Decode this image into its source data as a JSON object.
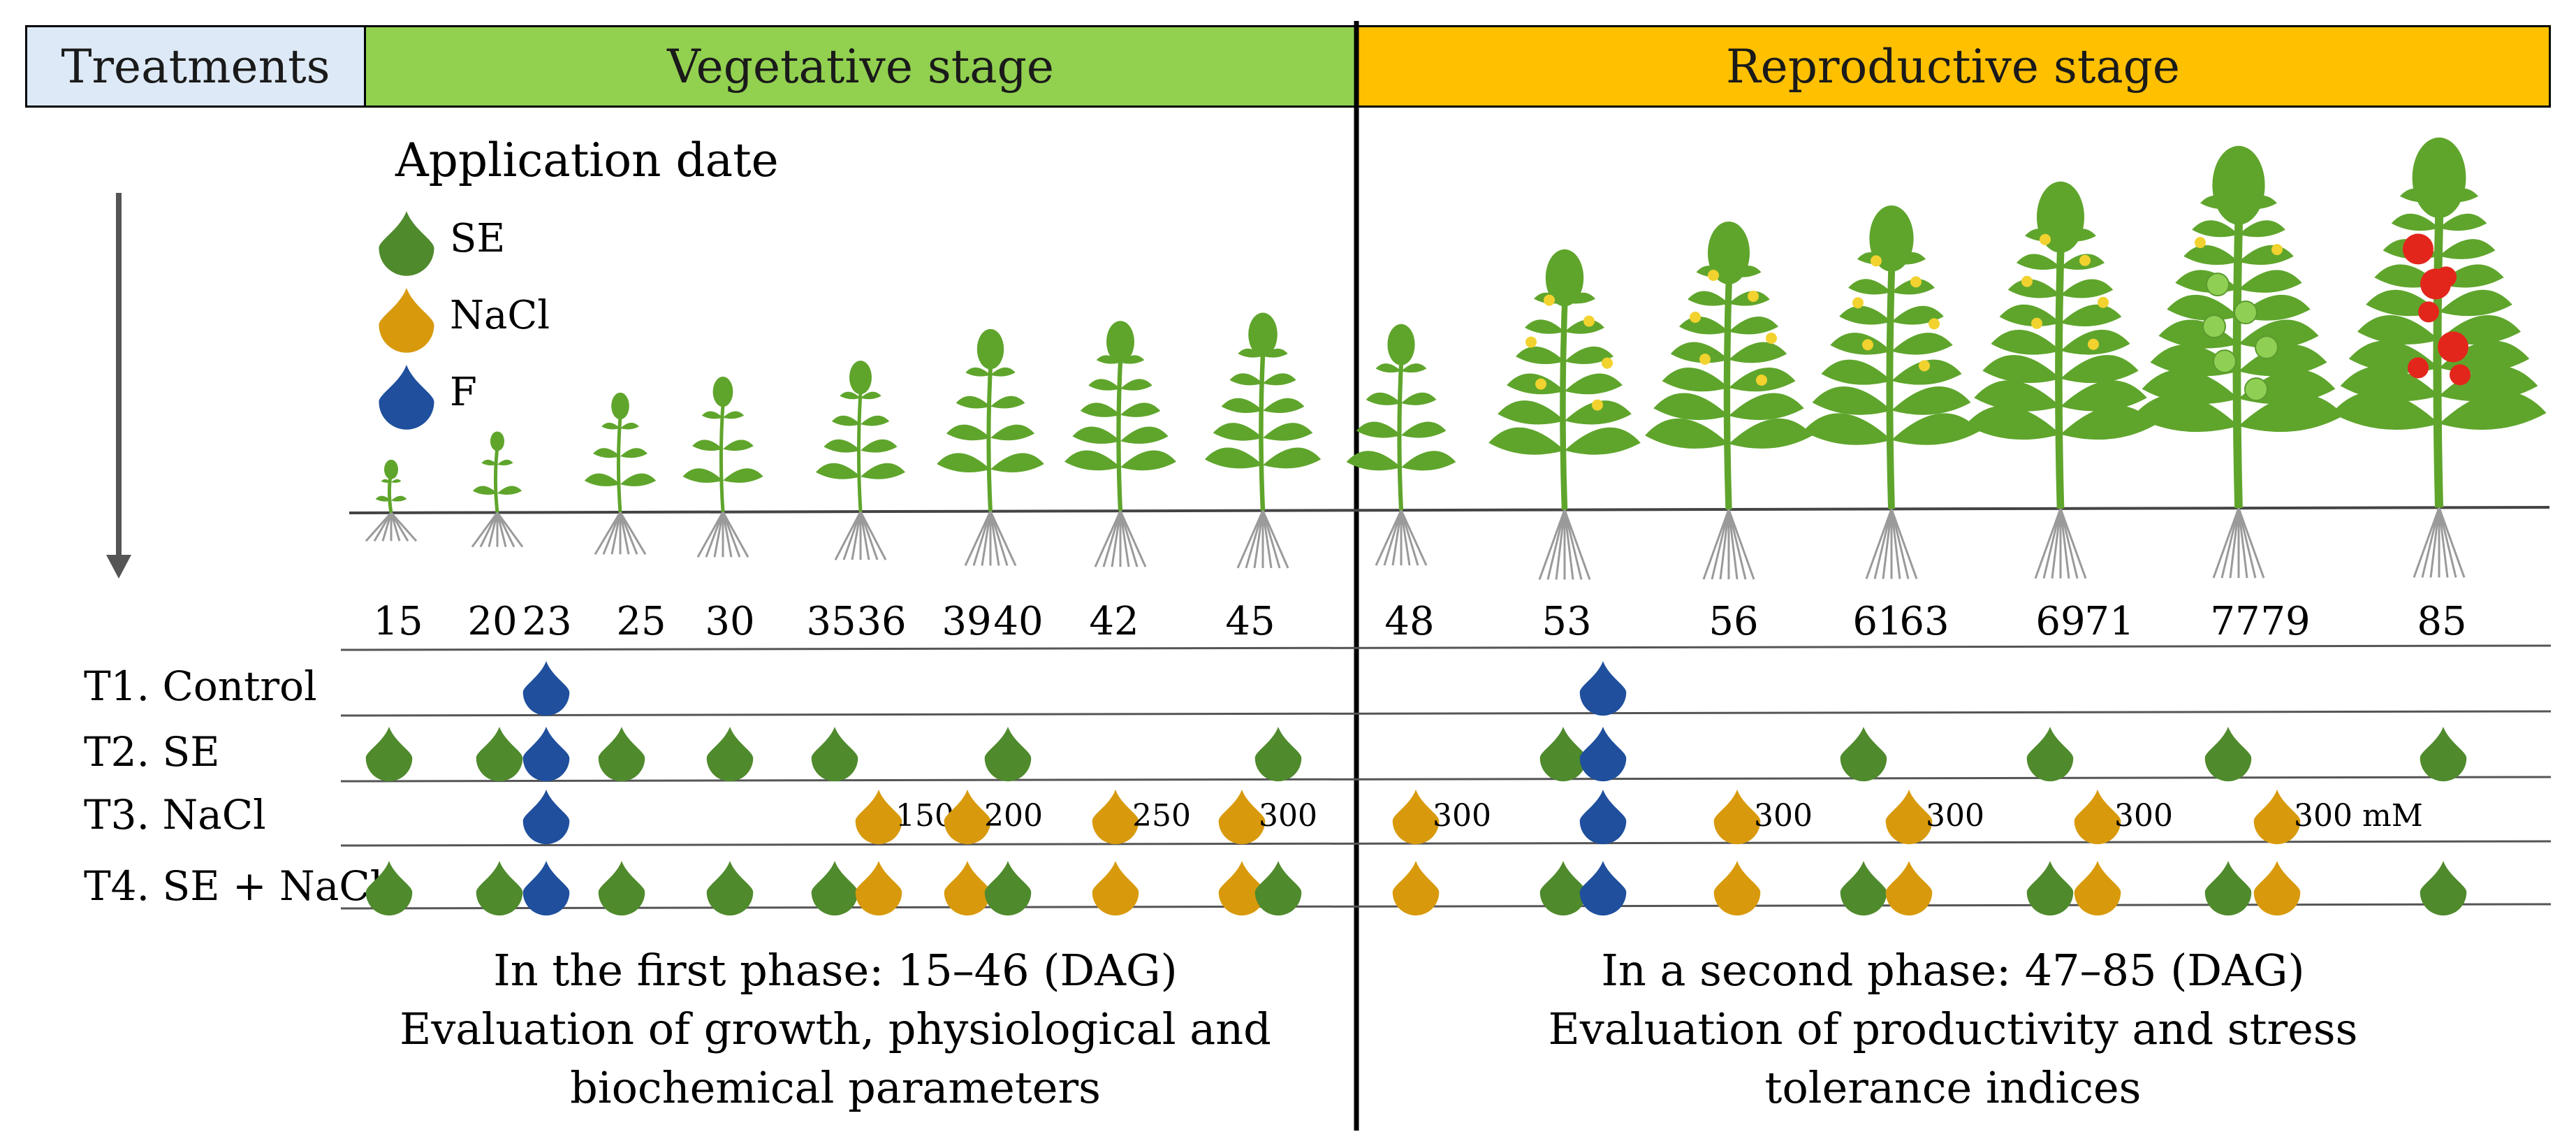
{
  "headers": {
    "treatments": "Treatments",
    "vegetative": "Vegetative stage",
    "reproductive": "Reproductive stage"
  },
  "legend": {
    "title": "Application date",
    "items": [
      {
        "label": "SE",
        "color": "#4f8a2c"
      },
      {
        "label": "NaCl",
        "color": "#d89a0c"
      },
      {
        "label": "F",
        "color": "#1f4f9d"
      }
    ]
  },
  "days": [
    15,
    20,
    23,
    25,
    30,
    35,
    36,
    39,
    40,
    42,
    45,
    48,
    53,
    56,
    61,
    63,
    69,
    71,
    77,
    79,
    85
  ],
  "treatments": [
    {
      "id": "T1",
      "label": "T1. Control",
      "drops": [
        {
          "type": "F",
          "day": 23
        },
        {
          "type": "F",
          "day": 53
        }
      ]
    },
    {
      "id": "T2",
      "label": "T2. SE",
      "drops": [
        {
          "type": "SE",
          "day": 15
        },
        {
          "type": "SE",
          "day": 20
        },
        {
          "type": "F",
          "day": 23
        },
        {
          "type": "SE",
          "day": 25
        },
        {
          "type": "SE",
          "day": 30
        },
        {
          "type": "SE",
          "day": 35
        },
        {
          "type": "SE",
          "day": 40
        },
        {
          "type": "SE",
          "day": 45
        },
        {
          "type": "SE",
          "day": 53
        },
        {
          "type": "F",
          "day": 53
        },
        {
          "type": "SE",
          "day": 61
        },
        {
          "type": "SE",
          "day": 69
        },
        {
          "type": "SE",
          "day": 77
        },
        {
          "type": "SE",
          "day": 85
        }
      ]
    },
    {
      "id": "T3",
      "label": "T3. NaCl",
      "drops": [
        {
          "type": "F",
          "day": 23
        },
        {
          "type": "NaCl",
          "day": 36,
          "note": "150"
        },
        {
          "type": "NaCl",
          "day": 39,
          "note": "200"
        },
        {
          "type": "NaCl",
          "day": 42,
          "note": "250"
        },
        {
          "type": "NaCl",
          "day": 45,
          "note": "300"
        },
        {
          "type": "NaCl",
          "day": 48,
          "note": "300"
        },
        {
          "type": "F",
          "day": 53
        },
        {
          "type": "NaCl",
          "day": 56,
          "note": "300"
        },
        {
          "type": "NaCl",
          "day": 63,
          "note": "300"
        },
        {
          "type": "NaCl",
          "day": 71,
          "note": "300"
        },
        {
          "type": "NaCl",
          "day": 79,
          "note": "300 mM"
        }
      ]
    },
    {
      "id": "T4",
      "label": "T4. SE + NaCl",
      "drops": [
        {
          "type": "SE",
          "day": 15
        },
        {
          "type": "SE",
          "day": 20
        },
        {
          "type": "F",
          "day": 23
        },
        {
          "type": "SE",
          "day": 25
        },
        {
          "type": "SE",
          "day": 30
        },
        {
          "type": "SE",
          "day": 35
        },
        {
          "type": "NaCl",
          "day": 36
        },
        {
          "type": "NaCl",
          "day": 39
        },
        {
          "type": "SE",
          "day": 40
        },
        {
          "type": "NaCl",
          "day": 42
        },
        {
          "type": "NaCl",
          "day": 45
        },
        {
          "type": "SE",
          "day": 45
        },
        {
          "type": "NaCl",
          "day": 48
        },
        {
          "type": "SE",
          "day": 53
        },
        {
          "type": "F",
          "day": 53
        },
        {
          "type": "NaCl",
          "day": 56
        },
        {
          "type": "SE",
          "day": 61
        },
        {
          "type": "NaCl",
          "day": 63
        },
        {
          "type": "SE",
          "day": 69
        },
        {
          "type": "NaCl",
          "day": 71
        },
        {
          "type": "SE",
          "day": 77
        },
        {
          "type": "NaCl",
          "day": 79
        },
        {
          "type": "SE",
          "day": 85
        }
      ]
    }
  ],
  "phases": {
    "first": [
      "In the first phase: 15–46 (DAG)",
      "Evaluation of growth, physiological and",
      "biochemical parameters"
    ],
    "second": [
      "In a second phase: 47–85 (DAG)",
      "Evaluation of productivity and stress",
      "tolerance indices"
    ]
  },
  "colors": {
    "se": "#4f8a2c",
    "nacl": "#d89a0c",
    "f": "#1f4f9d",
    "leaf": "#5fa52c",
    "flower": "#f2d22e",
    "fruit": "#e3261c",
    "green_fruit": "#8fcf54"
  }
}
